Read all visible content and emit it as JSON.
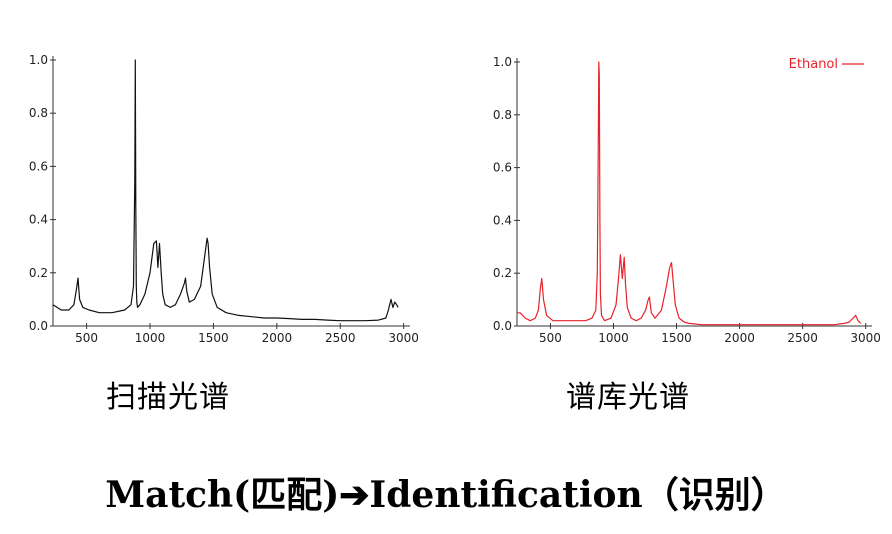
{
  "chart_data": [
    {
      "type": "line",
      "title": "",
      "caption": "扫描光谱",
      "color": "#111111",
      "xlim": [
        235,
        3050
      ],
      "ylim": [
        0,
        1.0
      ],
      "x_ticks": [
        500,
        1000,
        1500,
        2000,
        2500,
        3000
      ],
      "y_ticks": [
        0.0,
        0.2,
        0.4,
        0.6,
        0.8,
        1.0
      ],
      "x_tick_labels": [
        "500",
        "1000",
        "1500",
        "2000",
        "2500",
        "3000"
      ],
      "y_tick_labels": [
        "0.0",
        "0.2",
        "0.4",
        "0.6",
        "0.8",
        "1.0"
      ],
      "series": [
        {
          "x": [
            235,
            300,
            360,
            400,
            420,
            432,
            445,
            470,
            520,
            600,
            700,
            800,
            850,
            870,
            880,
            884,
            888,
            892,
            896,
            902,
            920,
            960,
            1000,
            1030,
            1050,
            1062,
            1075,
            1088,
            1100,
            1120,
            1160,
            1200,
            1240,
            1270,
            1280,
            1290,
            1310,
            1350,
            1400,
            1430,
            1450,
            1458,
            1470,
            1490,
            1530,
            1600,
            1700,
            1800,
            1900,
            2000,
            2100,
            2200,
            2300,
            2400,
            2500,
            2600,
            2700,
            2800,
            2860,
            2880,
            2900,
            2915,
            2930,
            2945,
            2955
          ],
          "y": [
            0.08,
            0.06,
            0.06,
            0.08,
            0.14,
            0.18,
            0.1,
            0.07,
            0.06,
            0.05,
            0.05,
            0.06,
            0.08,
            0.15,
            0.55,
            1.0,
            0.45,
            0.15,
            0.09,
            0.07,
            0.08,
            0.12,
            0.2,
            0.31,
            0.32,
            0.22,
            0.31,
            0.2,
            0.12,
            0.08,
            0.07,
            0.08,
            0.12,
            0.16,
            0.18,
            0.13,
            0.09,
            0.1,
            0.15,
            0.26,
            0.33,
            0.31,
            0.22,
            0.12,
            0.07,
            0.05,
            0.04,
            0.035,
            0.03,
            0.03,
            0.028,
            0.025,
            0.025,
            0.022,
            0.02,
            0.02,
            0.02,
            0.022,
            0.03,
            0.06,
            0.1,
            0.07,
            0.09,
            0.08,
            0.07
          ]
        }
      ]
    },
    {
      "type": "line",
      "title": "",
      "caption": "谱库光谱",
      "color": "#e8222b",
      "legend": {
        "label": "Ethanol",
        "position": "top-right"
      },
      "xlim": [
        235,
        3050
      ],
      "ylim": [
        0,
        1.0
      ],
      "x_ticks": [
        500,
        1000,
        1500,
        2000,
        2500,
        3000
      ],
      "y_ticks": [
        0.0,
        0.2,
        0.4,
        0.6,
        0.8,
        1.0
      ],
      "x_tick_labels": [
        "500",
        "1000",
        "1500",
        "2000",
        "2500",
        "3000"
      ],
      "y_tick_labels": [
        "0.0",
        "0.2",
        "0.4",
        "0.6",
        "0.8",
        "1.0"
      ],
      "series": [
        {
          "name": "Ethanol",
          "x": [
            235,
            260,
            300,
            340,
            380,
            405,
            420,
            432,
            445,
            470,
            520,
            600,
            700,
            780,
            830,
            860,
            872,
            880,
            884,
            888,
            892,
            896,
            905,
            930,
            980,
            1020,
            1040,
            1055,
            1070,
            1085,
            1095,
            1110,
            1140,
            1180,
            1220,
            1255,
            1275,
            1285,
            1300,
            1330,
            1380,
            1420,
            1445,
            1460,
            1475,
            1490,
            1520,
            1560,
            1600,
            1700,
            1800,
            1900,
            2000,
            2200,
            2400,
            2600,
            2750,
            2830,
            2870,
            2900,
            2920,
            2940,
            2960
          ],
          "y": [
            0.05,
            0.05,
            0.03,
            0.02,
            0.03,
            0.06,
            0.14,
            0.18,
            0.1,
            0.04,
            0.02,
            0.02,
            0.02,
            0.02,
            0.03,
            0.06,
            0.2,
            0.7,
            1.0,
            0.95,
            0.4,
            0.12,
            0.04,
            0.02,
            0.03,
            0.08,
            0.18,
            0.27,
            0.18,
            0.26,
            0.16,
            0.07,
            0.03,
            0.02,
            0.03,
            0.06,
            0.1,
            0.11,
            0.05,
            0.03,
            0.06,
            0.15,
            0.22,
            0.24,
            0.16,
            0.08,
            0.03,
            0.015,
            0.01,
            0.005,
            0.005,
            0.005,
            0.005,
            0.005,
            0.005,
            0.005,
            0.005,
            0.01,
            0.015,
            0.03,
            0.04,
            0.02,
            0.01
          ]
        }
      ]
    }
  ],
  "captions": {
    "left": "扫描光谱",
    "right": "谱库光谱"
  },
  "footer": {
    "text": "Match(匹配)➔Identification（识别）"
  }
}
